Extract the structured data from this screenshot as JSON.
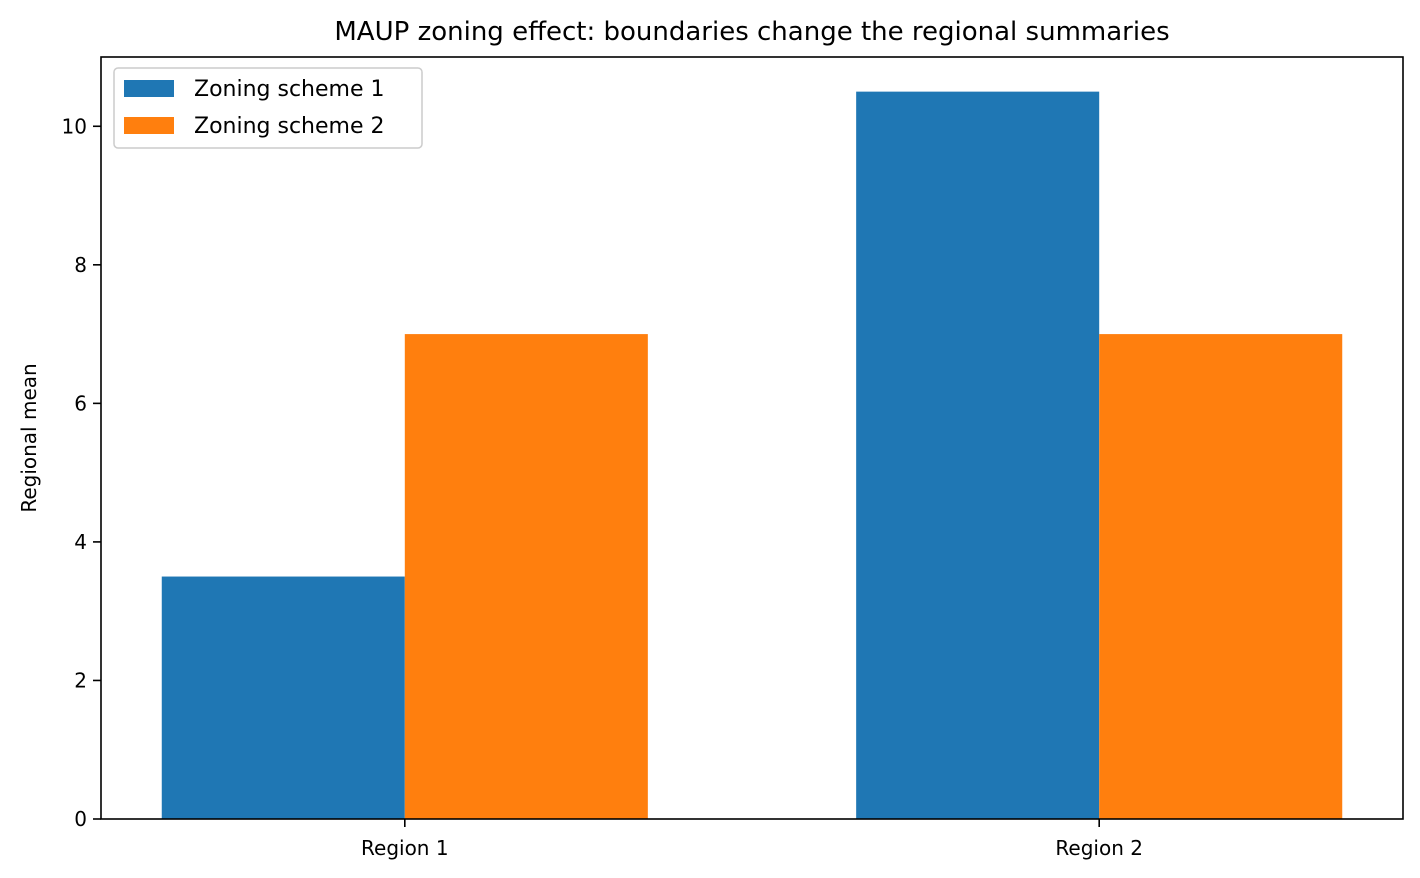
{
  "chart_data": {
    "type": "bar",
    "title": "MAUP zoning effect: boundaries change the regional summaries",
    "xlabel": "",
    "ylabel": "Regional mean",
    "categories": [
      "Region 1",
      "Region 2"
    ],
    "series": [
      {
        "name": "Zoning scheme 1",
        "values": [
          3.5,
          10.5
        ],
        "color": "#1f77b4"
      },
      {
        "name": "Zoning scheme 2",
        "values": [
          7.0,
          7.0
        ],
        "color": "#ff7f0e"
      }
    ],
    "ylim": [
      0,
      11
    ],
    "yticks": [
      0,
      2,
      4,
      6,
      8,
      10
    ],
    "grid": false,
    "legend_position": "top-left"
  }
}
